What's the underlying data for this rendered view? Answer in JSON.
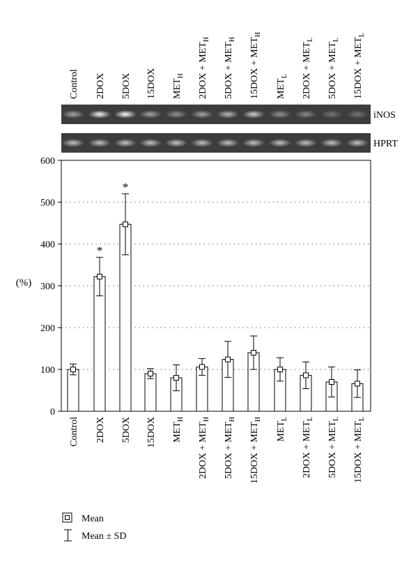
{
  "chart_data": {
    "type": "bar",
    "ylabel": "(%)",
    "ylim": [
      0,
      600
    ],
    "yticks": [
      0,
      100,
      200,
      300,
      400,
      500,
      600
    ],
    "grid": "horizontal-dotted",
    "categories": [
      {
        "main": "Control",
        "sub": ""
      },
      {
        "main": "2DOX",
        "sub": ""
      },
      {
        "main": "5DOX",
        "sub": ""
      },
      {
        "main": "15DOX",
        "sub": ""
      },
      {
        "main": "MET",
        "sub": "H"
      },
      {
        "main": "2DOX + MET",
        "sub": "H"
      },
      {
        "main": "5DOX + MET",
        "sub": "H"
      },
      {
        "main": "15DOX + MET",
        "sub": "H"
      },
      {
        "main": "MET",
        "sub": "L"
      },
      {
        "main": "2DOX + MET",
        "sub": "L"
      },
      {
        "main": "5DOX + MET",
        "sub": "L"
      },
      {
        "main": "15DOX + MET",
        "sub": "L"
      }
    ],
    "series": [
      {
        "values": [
          100,
          322,
          447,
          90,
          80,
          106,
          124,
          140,
          100,
          86,
          70,
          66
        ],
        "sd": [
          13,
          46,
          73,
          12,
          31,
          20,
          43,
          40,
          28,
          32,
          36,
          33
        ]
      }
    ],
    "significance": [
      "",
      "*",
      "*",
      "",
      "",
      "",
      "",
      "",
      "",
      "",
      "",
      ""
    ],
    "legend": {
      "placement": "bottom-left",
      "items": [
        {
          "symbol": "square",
          "label": "Mean"
        },
        {
          "symbol": "errorbar",
          "label": "Mean ± SD"
        }
      ]
    },
    "gel": {
      "rows": [
        {
          "label": "iNOS",
          "intensity": [
            0.55,
            0.95,
            1.0,
            0.55,
            0.45,
            0.55,
            0.65,
            0.75,
            0.45,
            0.4,
            0.3,
            0.3
          ]
        },
        {
          "label": "HPRT",
          "intensity": [
            0.7,
            0.7,
            0.7,
            0.7,
            0.7,
            0.7,
            0.7,
            0.7,
            0.7,
            0.7,
            0.7,
            0.7
          ]
        }
      ]
    }
  }
}
